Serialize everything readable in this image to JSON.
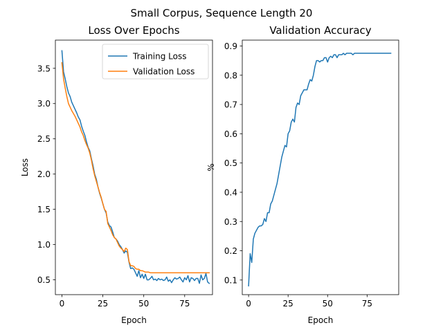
{
  "figure": {
    "suptitle": "Small Corpus, Sequence Length 20"
  },
  "chart_data": [
    {
      "type": "line",
      "title": "Loss Over Epochs",
      "xlabel": "Epoch",
      "ylabel": "Loss",
      "xlim": [
        -4,
        92
      ],
      "ylim": [
        0.29,
        3.9
      ],
      "xticks": [
        0,
        25,
        50,
        75
      ],
      "yticks": [
        0.5,
        1.0,
        1.5,
        2.0,
        2.5,
        3.0,
        3.5
      ],
      "ytick_labels": [
        "0.5",
        "1.0",
        "1.5",
        "2.0",
        "2.5",
        "3.0",
        "3.5"
      ],
      "legend": "upper-right",
      "series": [
        {
          "name": "Training Loss",
          "color": "#1f77b4",
          "x": [
            0,
            1,
            2,
            3,
            4,
            5,
            6,
            7,
            8,
            9,
            10,
            11,
            12,
            13,
            14,
            15,
            16,
            17,
            18,
            19,
            20,
            21,
            22,
            23,
            24,
            25,
            26,
            27,
            28,
            29,
            30,
            31,
            32,
            33,
            34,
            35,
            36,
            37,
            38,
            39,
            40,
            41,
            42,
            43,
            44,
            45,
            46,
            47,
            48,
            49,
            50,
            51,
            52,
            53,
            54,
            55,
            56,
            57,
            58,
            59,
            60,
            61,
            62,
            63,
            64,
            65,
            66,
            67,
            68,
            69,
            70,
            71,
            72,
            73,
            74,
            75,
            76,
            77,
            78,
            79,
            80,
            81,
            82,
            83,
            84,
            85,
            86,
            87,
            88,
            89,
            90
          ],
          "values": [
            3.75,
            3.45,
            3.35,
            3.24,
            3.15,
            3.1,
            3.02,
            2.97,
            2.92,
            2.87,
            2.81,
            2.77,
            2.68,
            2.61,
            2.55,
            2.46,
            2.38,
            2.33,
            2.22,
            2.12,
            2.0,
            1.93,
            1.82,
            1.73,
            1.66,
            1.58,
            1.5,
            1.45,
            1.32,
            1.27,
            1.25,
            1.18,
            1.1,
            1.08,
            1.05,
            1.0,
            0.97,
            0.93,
            0.88,
            0.91,
            0.89,
            0.75,
            0.66,
            0.67,
            0.65,
            0.6,
            0.55,
            0.63,
            0.53,
            0.58,
            0.52,
            0.58,
            0.5,
            0.5,
            0.52,
            0.55,
            0.5,
            0.51,
            0.49,
            0.52,
            0.5,
            0.51,
            0.49,
            0.5,
            0.54,
            0.48,
            0.5,
            0.46,
            0.5,
            0.53,
            0.51,
            0.52,
            0.54,
            0.5,
            0.47,
            0.53,
            0.5,
            0.56,
            0.47,
            0.53,
            0.52,
            0.49,
            0.52,
            0.52,
            0.45,
            0.57,
            0.5,
            0.52,
            0.59,
            0.47,
            0.45
          ]
        },
        {
          "name": "Validation Loss",
          "color": "#ff7f0e",
          "x": [
            0,
            1,
            2,
            3,
            4,
            5,
            6,
            7,
            8,
            9,
            10,
            11,
            12,
            13,
            14,
            15,
            16,
            17,
            18,
            19,
            20,
            21,
            22,
            23,
            24,
            25,
            26,
            27,
            28,
            29,
            30,
            31,
            32,
            33,
            34,
            35,
            36,
            37,
            38,
            39,
            40,
            41,
            42,
            43,
            44,
            45,
            46,
            47,
            48,
            49,
            50,
            51,
            52,
            53,
            54,
            55,
            56,
            57,
            58,
            59,
            60,
            61,
            62,
            63,
            64,
            65,
            66,
            67,
            68,
            69,
            70,
            71,
            72,
            73,
            74,
            75,
            76,
            77,
            78,
            79,
            80,
            81,
            82,
            83,
            84,
            85,
            86,
            87,
            88,
            89,
            90
          ],
          "values": [
            3.58,
            3.35,
            3.22,
            3.1,
            3.0,
            2.95,
            2.9,
            2.86,
            2.82,
            2.77,
            2.72,
            2.67,
            2.6,
            2.55,
            2.48,
            2.42,
            2.37,
            2.3,
            2.2,
            2.08,
            1.98,
            1.9,
            1.82,
            1.74,
            1.67,
            1.58,
            1.5,
            1.47,
            1.3,
            1.25,
            1.2,
            1.14,
            1.1,
            1.08,
            1.03,
            0.98,
            0.95,
            0.93,
            0.9,
            0.95,
            0.93,
            0.76,
            0.7,
            0.7,
            0.69,
            0.66,
            0.65,
            0.65,
            0.63,
            0.63,
            0.62,
            0.61,
            0.61,
            0.61,
            0.6,
            0.6,
            0.6,
            0.6,
            0.6,
            0.6,
            0.6,
            0.6,
            0.6,
            0.6,
            0.6,
            0.6,
            0.6,
            0.6,
            0.6,
            0.6,
            0.6,
            0.6,
            0.6,
            0.6,
            0.6,
            0.6,
            0.6,
            0.6,
            0.6,
            0.6,
            0.6,
            0.6,
            0.6,
            0.6,
            0.6,
            0.6,
            0.6,
            0.6,
            0.6,
            0.6,
            0.6
          ]
        }
      ]
    },
    {
      "type": "line",
      "title": "Validation Accuracy",
      "xlabel": "Epoch",
      "ylabel": "%",
      "xlim": [
        -4,
        95
      ],
      "ylim": [
        0.05,
        0.92
      ],
      "xticks": [
        0,
        25,
        50,
        75
      ],
      "yticks": [
        0.1,
        0.2,
        0.3,
        0.4,
        0.5,
        0.6,
        0.7,
        0.8,
        0.9
      ],
      "ytick_labels": [
        "0.1",
        "0.2",
        "0.3",
        "0.4",
        "0.5",
        "0.6",
        "0.7",
        "0.8",
        "0.9"
      ],
      "series": [
        {
          "color": "#1f77b4",
          "x": [
            0,
            1,
            2,
            3,
            4,
            5,
            6,
            7,
            8,
            9,
            10,
            11,
            12,
            13,
            14,
            15,
            16,
            17,
            18,
            19,
            20,
            21,
            22,
            23,
            24,
            25,
            26,
            27,
            28,
            29,
            30,
            31,
            32,
            33,
            34,
            35,
            36,
            37,
            38,
            39,
            40,
            41,
            42,
            43,
            44,
            45,
            46,
            47,
            48,
            49,
            50,
            51,
            52,
            53,
            54,
            55,
            56,
            57,
            58,
            59,
            60,
            61,
            62,
            63,
            64,
            65,
            66,
            67,
            68,
            69,
            70,
            71,
            72,
            73,
            74,
            75,
            76,
            77,
            78,
            79,
            80,
            81,
            82,
            83,
            84,
            85,
            86,
            87,
            88,
            89,
            90
          ],
          "values": [
            0.08,
            0.19,
            0.16,
            0.24,
            0.26,
            0.27,
            0.28,
            0.285,
            0.285,
            0.29,
            0.31,
            0.3,
            0.33,
            0.33,
            0.36,
            0.37,
            0.39,
            0.41,
            0.43,
            0.46,
            0.49,
            0.52,
            0.54,
            0.56,
            0.555,
            0.6,
            0.61,
            0.64,
            0.65,
            0.64,
            0.69,
            0.705,
            0.7,
            0.73,
            0.74,
            0.75,
            0.75,
            0.75,
            0.77,
            0.785,
            0.78,
            0.8,
            0.83,
            0.85,
            0.85,
            0.845,
            0.85,
            0.85,
            0.86,
            0.86,
            0.845,
            0.86,
            0.865,
            0.86,
            0.87,
            0.87,
            0.86,
            0.87,
            0.87,
            0.87,
            0.875,
            0.87,
            0.875,
            0.875,
            0.875,
            0.875,
            0.87,
            0.875,
            0.875,
            0.875,
            0.875,
            0.875,
            0.875,
            0.875,
            0.875,
            0.875,
            0.875,
            0.875,
            0.875,
            0.875,
            0.875,
            0.875,
            0.875,
            0.875,
            0.875,
            0.875,
            0.875,
            0.875,
            0.875,
            0.875,
            0.875
          ]
        }
      ]
    }
  ]
}
